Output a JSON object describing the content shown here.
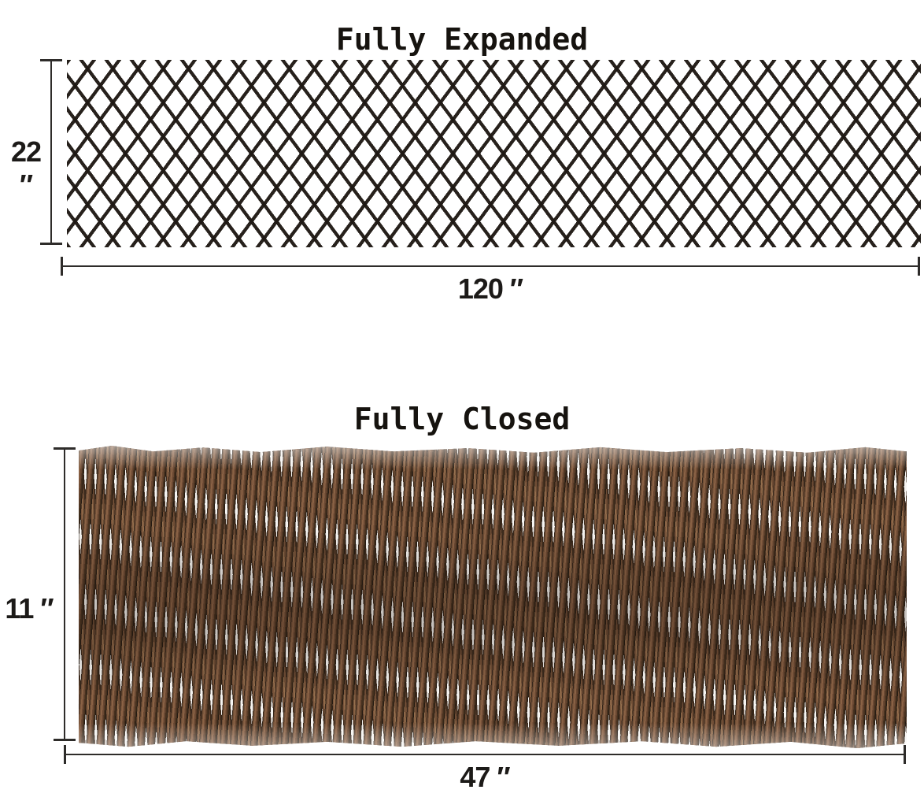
{
  "diagram": {
    "background": "#ffffff",
    "dimension_line_color": "#2e2c2a",
    "text_color": "#16130f"
  },
  "expanded": {
    "title": "Fully Expanded",
    "height_label": "22 ″",
    "width_label": "120 ″",
    "lattice_color": "#1e1813",
    "state_description": "diamond-lattice trellis stretched open"
  },
  "closed": {
    "title": "Fully Closed",
    "height_label": "11 ″",
    "width_label": "47 ″",
    "stick_color_dark": "#2f2115",
    "stick_color_mid": "#6b4a33",
    "stick_color_light": "#95704e",
    "state_description": "willow sticks compressed together"
  }
}
